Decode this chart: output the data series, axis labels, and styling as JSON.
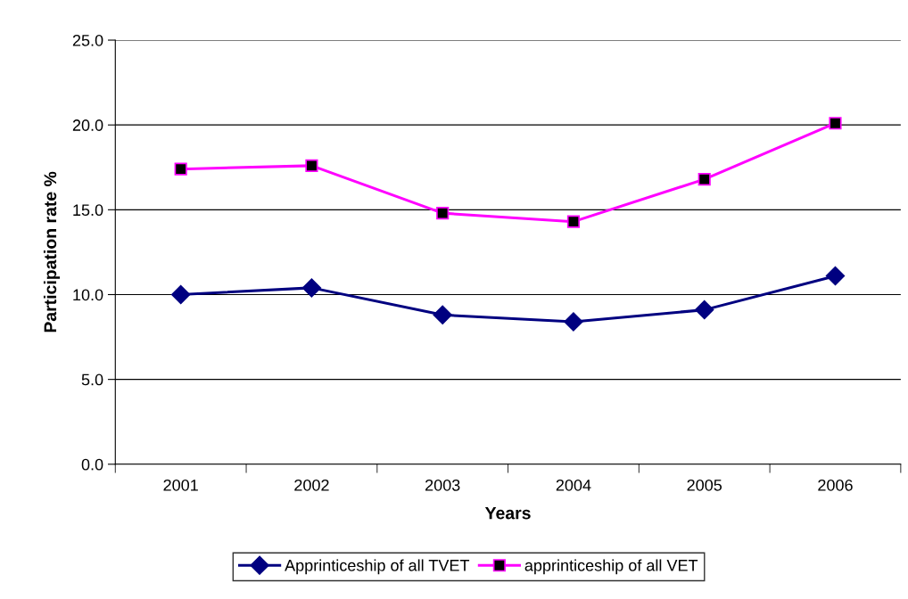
{
  "chart_data": {
    "type": "line",
    "xlabel": "Years",
    "ylabel": "Participation rate %",
    "categories": [
      "2001",
      "2002",
      "2003",
      "2004",
      "2005",
      "2006"
    ],
    "series": [
      {
        "name": "Apprinticeship of all TVET",
        "color": "#000080",
        "marker": "diamond",
        "values": [
          10.0,
          10.4,
          8.8,
          8.4,
          9.1,
          11.1
        ]
      },
      {
        "name": "apprinticeship of all VET",
        "color": "#ff00ff",
        "marker": "square",
        "values": [
          17.4,
          17.6,
          14.8,
          14.3,
          16.8,
          20.1
        ]
      }
    ],
    "ylim": [
      0,
      25
    ],
    "yticks": [
      {
        "value": 0,
        "label": "0.0"
      },
      {
        "value": 5,
        "label": "5.0"
      },
      {
        "value": 10,
        "label": "10.0"
      },
      {
        "value": 15,
        "label": "15.0"
      },
      {
        "value": 20,
        "label": "20.0"
      },
      {
        "value": 25,
        "label": "25.0"
      }
    ],
    "grid": "y",
    "legend": "bottom",
    "line_style": "solid"
  }
}
